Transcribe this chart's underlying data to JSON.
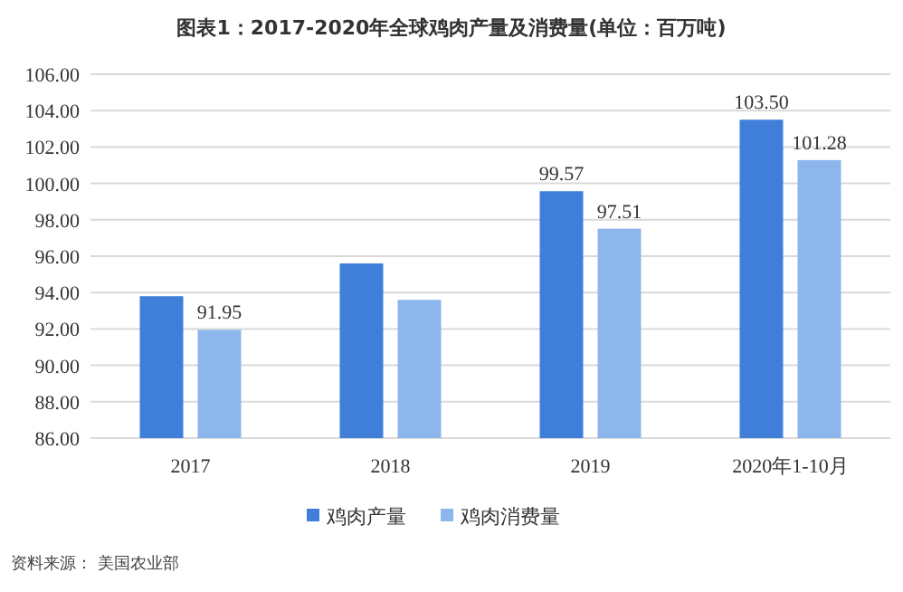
{
  "chart_data": {
    "type": "bar",
    "title": "图表1：2017-2020年全球鸡肉产量及消费量(单位：百万吨)",
    "categories": [
      "2017",
      "2018",
      "2019",
      "2020年1-10月"
    ],
    "series": [
      {
        "name": "鸡肉产量",
        "color": "#3f7fd9",
        "values": [
          93.8,
          95.6,
          99.57,
          103.5
        ],
        "value_labels": [
          null,
          null,
          "99.57",
          "103.50"
        ]
      },
      {
        "name": "鸡肉消费量",
        "color": "#8db6ec",
        "values": [
          91.95,
          93.6,
          97.51,
          101.28
        ],
        "value_labels": [
          "91.95",
          null,
          "97.51",
          "101.28"
        ]
      }
    ],
    "ylim": [
      86,
      106
    ],
    "yticks": [
      {
        "value": 86,
        "label": "86.00"
      },
      {
        "value": 88,
        "label": "88.00"
      },
      {
        "value": 90,
        "label": "90.00"
      },
      {
        "value": 92,
        "label": "92.00"
      },
      {
        "value": 94,
        "label": "94.00"
      },
      {
        "value": 96,
        "label": "96.00"
      },
      {
        "value": 98,
        "label": "98.00"
      },
      {
        "value": 100,
        "label": "100.00"
      },
      {
        "value": 102,
        "label": "102.00"
      },
      {
        "value": 104,
        "label": "104.00"
      },
      {
        "value": 106,
        "label": "106.00"
      }
    ],
    "grid": "y",
    "legend": "bottom",
    "annotations": [
      "资料来源： 美国农业部"
    ]
  }
}
